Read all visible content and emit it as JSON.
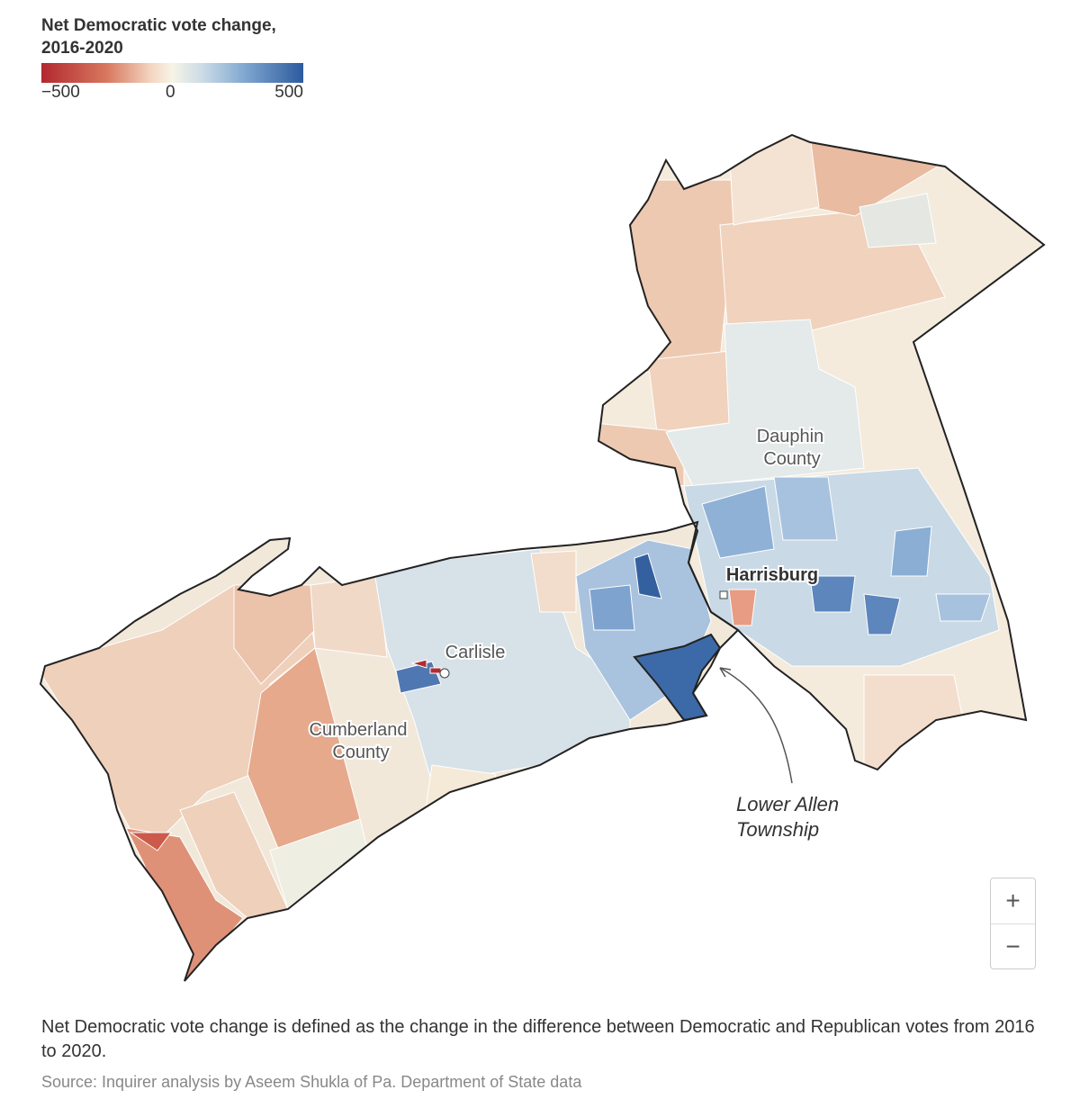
{
  "legend": {
    "title": "Net Democratic vote change, 2016-2020",
    "min_label": "−500",
    "mid_label": "0",
    "max_label": "500",
    "scale": {
      "min": -500,
      "mid": 0,
      "max": 500,
      "colors": {
        "min": "#b2282f",
        "mid": "#f7f4e6",
        "max": "#2c5a9e"
      }
    }
  },
  "map": {
    "labels": {
      "dauphin_1": "Dauphin",
      "dauphin_2": "County",
      "cumberland_1": "Cumberland",
      "cumberland_2": "County",
      "harrisburg": "Harrisburg",
      "carlisle": "Carlisle"
    },
    "annotation": {
      "line1": "Lower Allen",
      "line2": "Township"
    }
  },
  "zoom_controls": {
    "zoom_in": "+",
    "zoom_out": "−"
  },
  "footer": {
    "note": "Net Democratic vote change is defined as the change in the difference between Democratic and Republican votes from 2016 to 2020.",
    "source": "Source: Inquirer analysis by Aseem Shukla of Pa. Department of State data"
  }
}
